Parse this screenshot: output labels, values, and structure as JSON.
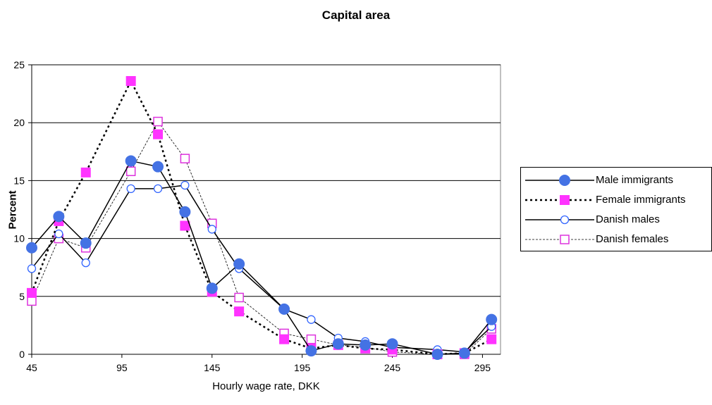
{
  "chart_data": {
    "type": "line",
    "title": "Capital area",
    "xlabel": "Hourly wage rate, DKK",
    "ylabel": "Percent",
    "xlim": [
      45,
      305
    ],
    "ylim": [
      0,
      25
    ],
    "xticks": [
      45,
      95,
      145,
      195,
      245,
      295
    ],
    "yticks": [
      0,
      5,
      10,
      15,
      20,
      25
    ],
    "grid": "horizontal",
    "legend_position": "right",
    "series": [
      {
        "name": "Male immigrants",
        "color": "#4472e4",
        "line": "solid",
        "marker": "filled-circle",
        "x": [
          45,
          60,
          75,
          100,
          115,
          130,
          145,
          160,
          185,
          200,
          215,
          230,
          245,
          270,
          285,
          300
        ],
        "y": [
          9.2,
          11.9,
          9.6,
          16.7,
          16.2,
          12.3,
          5.7,
          7.8,
          3.9,
          0.3,
          0.9,
          0.8,
          0.9,
          0.0,
          0.1,
          3.0
        ]
      },
      {
        "name": "Female immigrants",
        "color": "#ff33ff",
        "line": "dotted",
        "marker": "filled-square",
        "x": [
          45,
          60,
          75,
          100,
          115,
          130,
          145,
          160,
          185,
          200,
          215,
          230,
          245,
          270,
          285,
          300
        ],
        "y": [
          5.3,
          11.5,
          15.7,
          23.6,
          19.0,
          11.1,
          5.4,
          3.7,
          1.3,
          0.5,
          0.8,
          0.5,
          0.4,
          0.0,
          0.1,
          1.3
        ]
      },
      {
        "name": "Danish males",
        "color": "#3366ff",
        "line": "solid",
        "marker": "hollow-circle",
        "x": [
          45,
          60,
          75,
          100,
          115,
          130,
          145,
          160,
          185,
          200,
          215,
          230,
          245,
          270,
          285,
          300
        ],
        "y": [
          7.4,
          10.4,
          7.9,
          14.3,
          14.3,
          14.6,
          10.8,
          7.4,
          3.9,
          3.0,
          1.4,
          1.1,
          0.6,
          0.4,
          0.2,
          2.4
        ]
      },
      {
        "name": "Danish females",
        "color": "#dd33dd",
        "line": "dashed-thin",
        "marker": "hollow-square",
        "x": [
          45,
          60,
          75,
          100,
          115,
          130,
          145,
          160,
          185,
          200,
          215,
          230,
          245,
          270,
          285,
          300
        ],
        "y": [
          4.6,
          10.0,
          9.2,
          15.8,
          20.1,
          16.9,
          11.3,
          4.9,
          1.8,
          1.3,
          0.8,
          0.6,
          0.2,
          0.0,
          0.0,
          2.2
        ]
      }
    ]
  }
}
